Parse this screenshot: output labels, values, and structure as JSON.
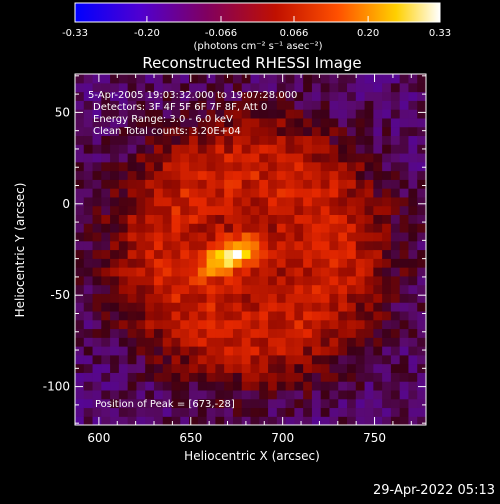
{
  "title": "Reconstructed RHESSI Image",
  "timestamp": "29-Apr-2022 05:13",
  "colorbar": {
    "ticks": [
      "-0.33",
      "-0.20",
      "-0.066",
      "0.066",
      "0.20",
      "0.33"
    ],
    "tick_values": [
      -0.33,
      -0.2,
      -0.066,
      0.066,
      0.2,
      0.33
    ],
    "range": [
      -0.33,
      0.33
    ],
    "unit_label": "(photons cm⁻² s⁻¹ asec⁻²)",
    "colors": [
      "#0000ff",
      "#6000c0",
      "#b02020",
      "#ff4000",
      "#ffd000",
      "#ffffff"
    ]
  },
  "annotations": {
    "time_range": "5-Apr-2005 19:03:32.000 to 19:07:28.000",
    "detectors": "Detectors: 3F 4F 5F 6F 7F 8F, Att 0",
    "energy": "Energy Range: 3.0 - 6.0 keV",
    "clean": "Clean    Total counts: 3.20E+04",
    "peak": "Position of Peak = [673,-28]"
  },
  "chart_data": {
    "type": "heatmap",
    "title": "Reconstructed RHESSI Image",
    "xlabel": "Heliocentric X (arcsec)",
    "ylabel": "Heliocentric Y (arcsec)",
    "xlim": [
      587,
      778
    ],
    "ylim": [
      -121,
      71
    ],
    "x_ticks": [
      600,
      650,
      700,
      750
    ],
    "y_ticks": [
      50,
      0,
      -50,
      -100
    ],
    "peak": {
      "x": 673,
      "y": -28,
      "value": 0.33
    },
    "ring": {
      "center_x": 682,
      "center_y": -25,
      "radius": 70,
      "value": 0.14
    },
    "background_value": -0.05
  }
}
